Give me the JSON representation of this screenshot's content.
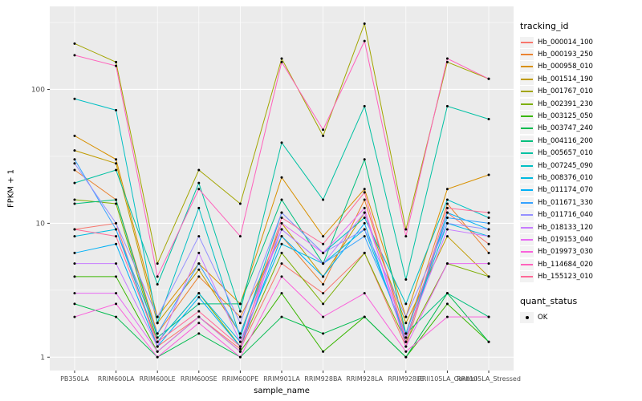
{
  "chart_data": {
    "type": "line",
    "title": "",
    "xlabel": "sample_name",
    "ylabel": "FPKM + 1",
    "y_scale": "log10",
    "ylim_log": [
      -0.1,
      2.62
    ],
    "y_ticks": [
      1,
      10,
      100
    ],
    "y_tick_labels": [
      "1",
      "10",
      "100"
    ],
    "y_minor_ticks": [
      3.162,
      31.62,
      316.2
    ],
    "grid": "on",
    "panel_bg": "#EBEBEB",
    "grid_color": "#FFFFFF",
    "tick_color": "#333333",
    "tick_label_color": "#4D4D4D",
    "point_color": "#000000",
    "legend_position": "right",
    "categories": [
      "PB350LA",
      "RRIM600LA",
      "RRIM600LE",
      "RRIM600SE",
      "RRIM600PE",
      "RRIM901LA",
      "RRIM928BA",
      "RRIM928LA",
      "RRIM928LE",
      "RRII105LA_Control",
      "RRII105LA_Stressed"
    ],
    "series": [
      {
        "name": "Hb_000014_100",
        "color": "#F8766D",
        "values": [
          9,
          10,
          1.2,
          2,
          1.15,
          5,
          3,
          6,
          1.2,
          12,
          7
        ]
      },
      {
        "name": "Hb_000193_250",
        "color": "#EA8331",
        "values": [
          25,
          15,
          1.5,
          4,
          2,
          8,
          3.5,
          15,
          1.5,
          14,
          6
        ]
      },
      {
        "name": "Hb_000958_010",
        "color": "#D89000",
        "values": [
          45,
          30,
          2,
          5,
          2.5,
          22,
          8,
          18,
          2,
          18,
          23
        ]
      },
      {
        "name": "Hb_001514_190",
        "color": "#C09B00",
        "values": [
          35,
          28,
          1.8,
          4.5,
          1.5,
          10,
          4,
          12,
          1.8,
          8,
          4
        ]
      },
      {
        "name": "Hb_001767_010",
        "color": "#A3A500",
        "values": [
          220,
          160,
          5,
          25,
          14,
          170,
          45,
          310,
          9,
          160,
          120
        ]
      },
      {
        "name": "Hb_002391_230",
        "color": "#7CAE00",
        "values": [
          15,
          14,
          1.3,
          3,
          1.2,
          6,
          2.5,
          6,
          1.3,
          5,
          4
        ]
      },
      {
        "name": "Hb_003125_050",
        "color": "#39B600",
        "values": [
          4,
          4,
          1.1,
          2,
          1.1,
          3,
          1.1,
          2,
          1,
          2.5,
          1.3
        ]
      },
      {
        "name": "Hb_003747_240",
        "color": "#00BB4E",
        "values": [
          2.5,
          2,
          1,
          1.5,
          1,
          2,
          1.5,
          2,
          1,
          3,
          1.3
        ]
      },
      {
        "name": "Hb_004116_200",
        "color": "#00BF7D",
        "values": [
          14,
          15,
          1.4,
          2.5,
          2.5,
          15,
          5,
          30,
          1.5,
          3,
          2
        ]
      },
      {
        "name": "Hb_005657_010",
        "color": "#00C1A3",
        "values": [
          20,
          25,
          3.5,
          20,
          2.2,
          40,
          15,
          75,
          3.8,
          75,
          60
        ]
      },
      {
        "name": "Hb_007245_090",
        "color": "#00BFC4",
        "values": [
          85,
          70,
          1.8,
          13,
          1.4,
          12,
          6,
          11,
          2.5,
          15,
          11
        ]
      },
      {
        "name": "Hb_008376_010",
        "color": "#00BAE0",
        "values": [
          8,
          9,
          1.3,
          3,
          1.3,
          7,
          5,
          9,
          1.4,
          10,
          8
        ]
      },
      {
        "name": "Hb_011174_070",
        "color": "#00B0F6",
        "values": [
          6,
          7,
          1.2,
          2.8,
          1.2,
          8,
          4,
          10,
          1.3,
          12,
          9
        ]
      },
      {
        "name": "Hb_011671_330",
        "color": "#35A2FF",
        "values": [
          30,
          9,
          1.5,
          5,
          1.5,
          9,
          5,
          8,
          1.5,
          11,
          10
        ]
      },
      {
        "name": "Hb_011716_040",
        "color": "#9590FF",
        "values": [
          28,
          10,
          2,
          8,
          1.8,
          12,
          6,
          9,
          2,
          10,
          9
        ]
      },
      {
        "name": "Hb_018133_120",
        "color": "#C77CFF",
        "values": [
          5,
          5,
          1.2,
          6,
          1.3,
          9,
          5,
          12,
          1.4,
          9,
          8
        ]
      },
      {
        "name": "Hb_019153_040",
        "color": "#E76BF3",
        "values": [
          3,
          3,
          1.1,
          2,
          1.1,
          10,
          6,
          13,
          1.2,
          5,
          5
        ]
      },
      {
        "name": "Hb_019973_030",
        "color": "#FA62DB",
        "values": [
          2,
          2.5,
          1,
          1.8,
          1,
          4,
          2,
          3,
          1.1,
          2,
          2
        ]
      },
      {
        "name": "Hb_114684_020",
        "color": "#FF62BC",
        "values": [
          180,
          150,
          4,
          18,
          8,
          160,
          50,
          230,
          8,
          170,
          120
        ]
      },
      {
        "name": "Hb_155123_010",
        "color": "#FF6A98",
        "values": [
          9,
          8,
          1.3,
          2.2,
          1.2,
          11,
          7,
          17,
          1.3,
          13,
          12
        ]
      }
    ],
    "legend": {
      "tracking_title": "tracking_id",
      "quant_title": "quant_status",
      "quant_items": [
        {
          "label": "OK"
        }
      ]
    }
  }
}
